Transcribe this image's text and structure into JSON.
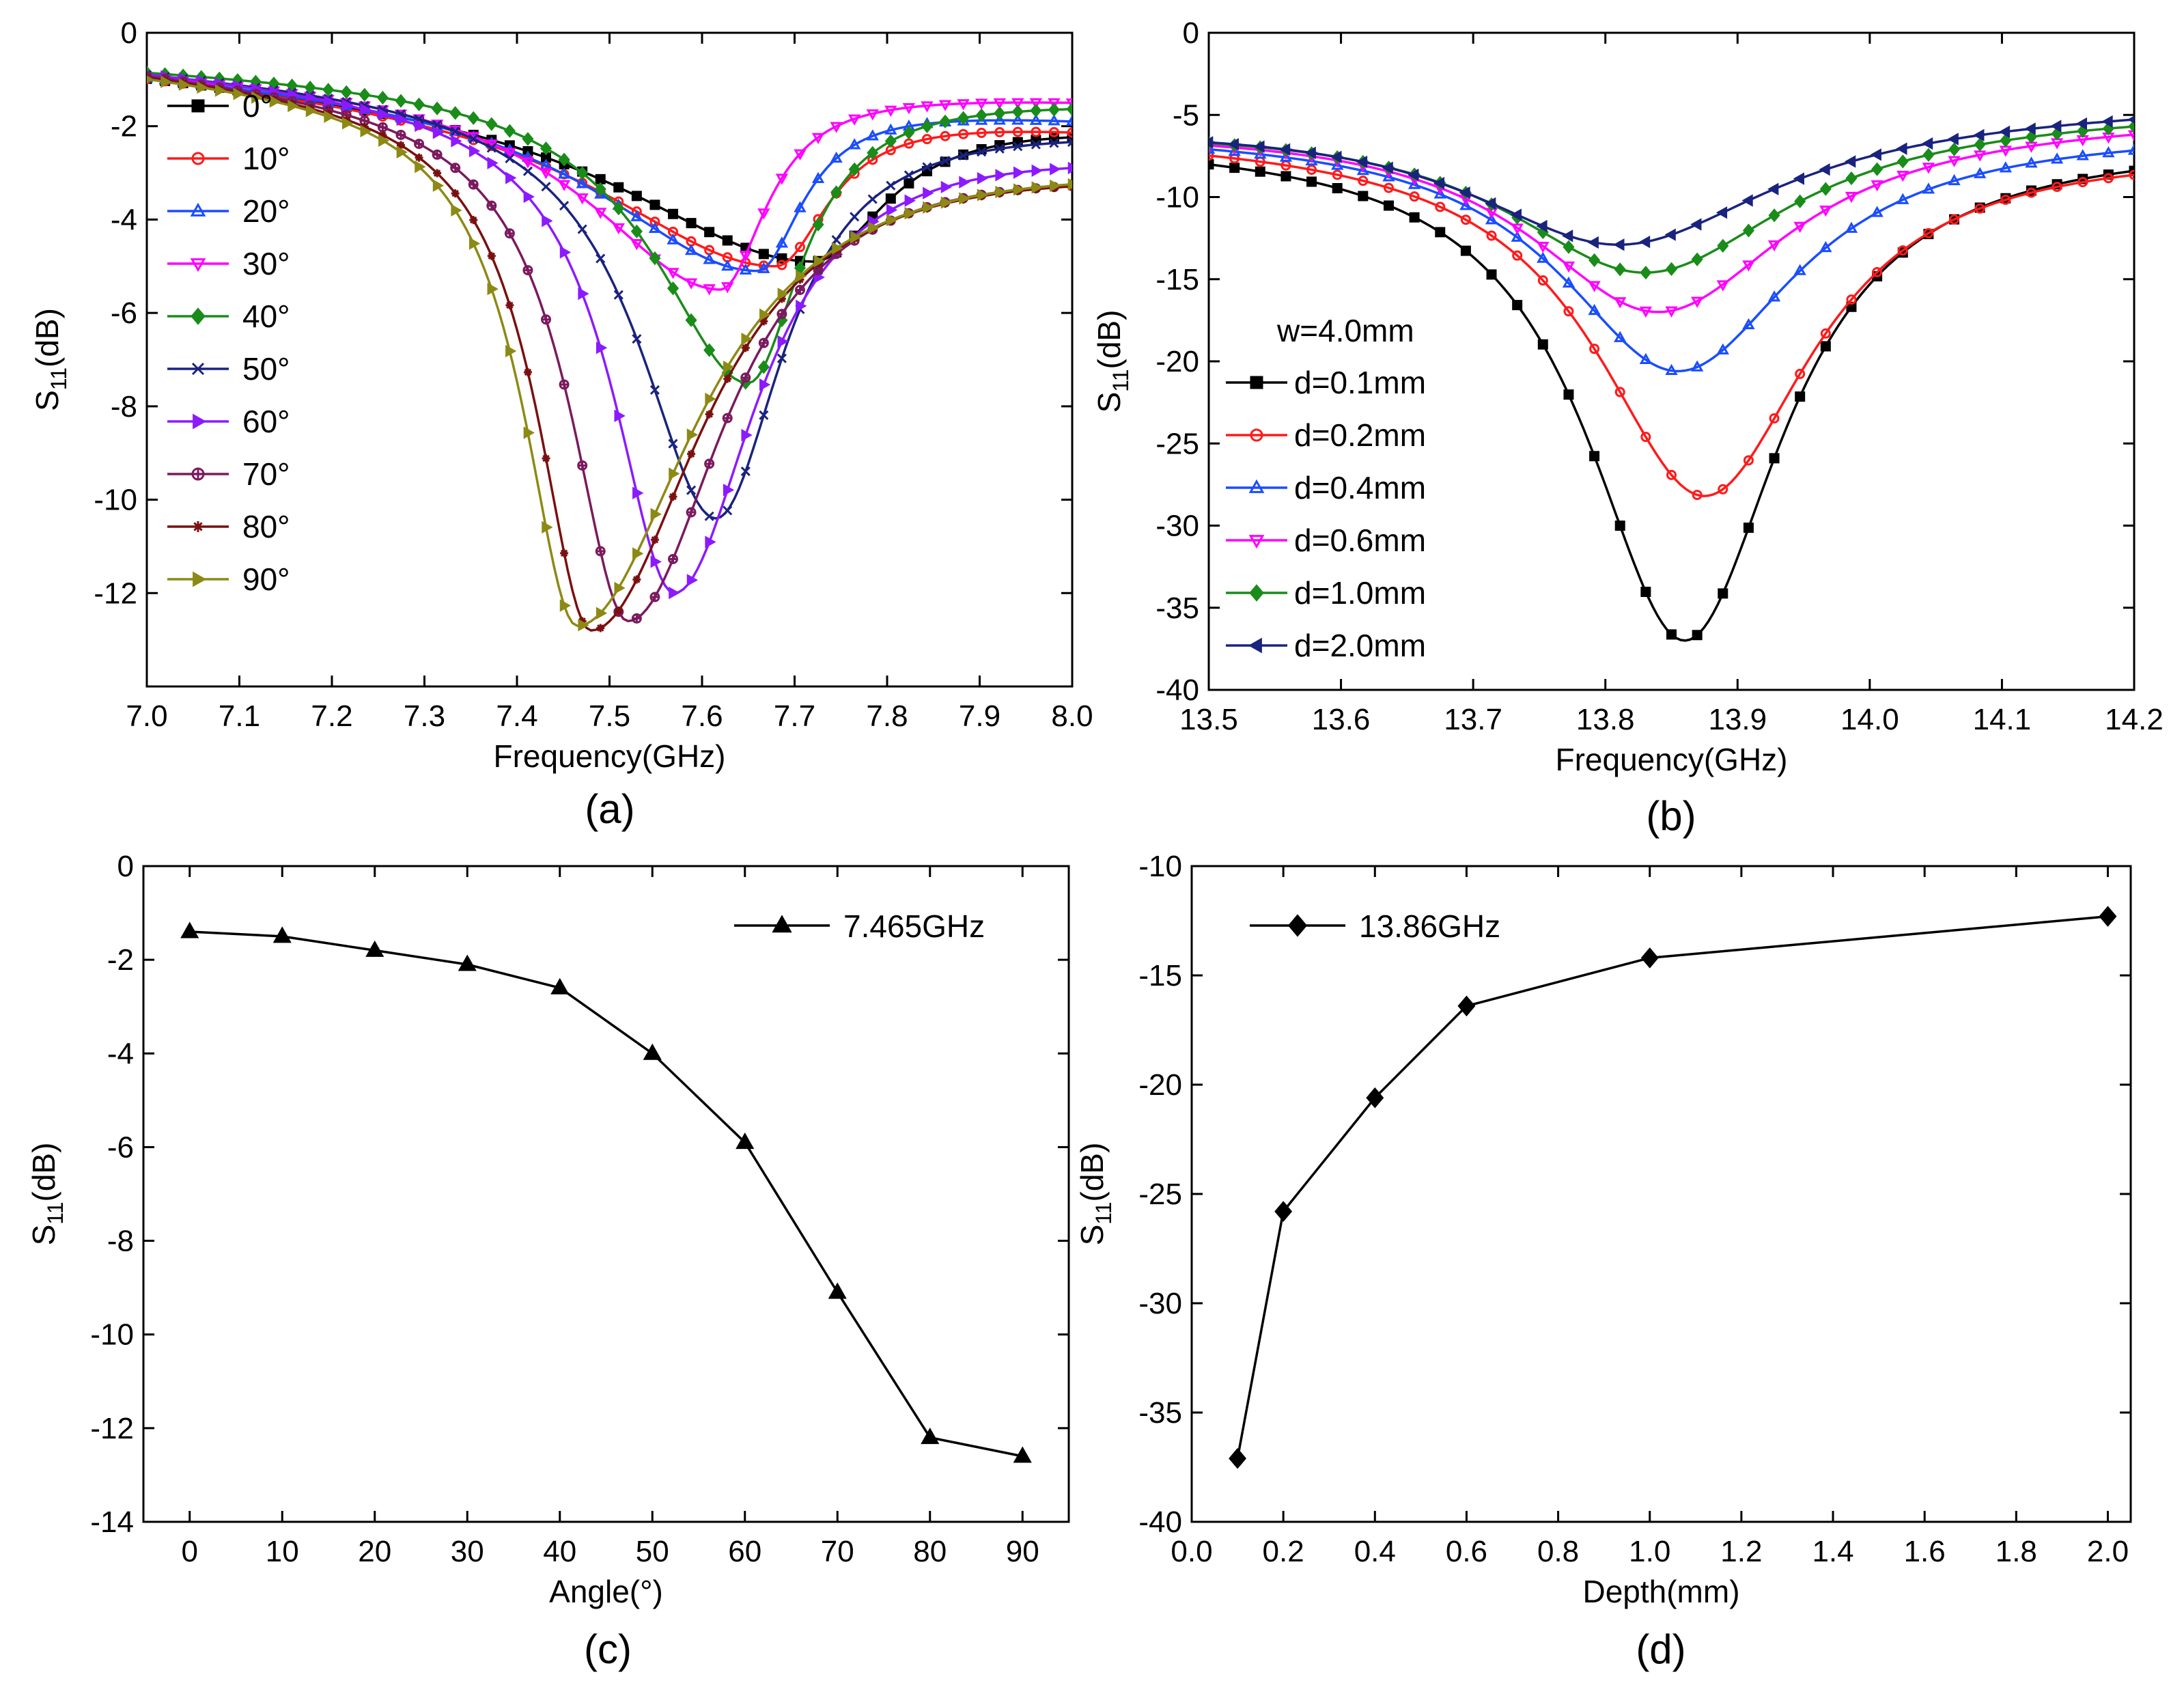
{
  "colors": {
    "black": "#000000",
    "red": "#ff1a1a",
    "blue": "#1a4dff",
    "magenta": "#ff00ff",
    "green": "#1a8c1a",
    "navy": "#1a237e",
    "violet": "#8c1aff",
    "purple": "#7b1a5e",
    "darkred": "#7a1010",
    "olive": "#8c8a14"
  },
  "chart_data": [
    {
      "panel": "a",
      "type": "line",
      "caption": "(a)",
      "xlabel": "Frequency(GHz)",
      "ylabel": "S11(dB)",
      "xlim": [
        7.0,
        8.0
      ],
      "ylim": [
        -14,
        0
      ],
      "xticks": [
        "7.0",
        "7.1",
        "7.2",
        "7.3",
        "7.4",
        "7.5",
        "7.6",
        "7.7",
        "7.8",
        "7.9",
        "8.0"
      ],
      "yticks": [
        "0",
        "-2",
        "-4",
        "-6",
        "-8",
        "-10",
        "-12"
      ],
      "legend_position": "left",
      "series": [
        {
          "name": "0°",
          "color": "black",
          "marker": "square",
          "f0": 7.72,
          "min": -4.9,
          "a": 0.5,
          "end": -1.9,
          "widthL": 0.24,
          "widthR": 0.1
        },
        {
          "name": "10°",
          "color": "red",
          "marker": "circle",
          "f0": 7.68,
          "min": -5.0,
          "a": 0.5,
          "end": -2.0,
          "widthL": 0.22,
          "widthR": 0.07
        },
        {
          "name": "20°",
          "color": "blue",
          "marker": "triangle-up",
          "f0": 7.66,
          "min": -5.1,
          "a": 0.5,
          "end": -1.8,
          "widthL": 0.2,
          "widthR": 0.06
        },
        {
          "name": "30°",
          "color": "magenta",
          "marker": "triangle-down",
          "f0": 7.62,
          "min": -5.5,
          "a": 0.5,
          "end": -1.4,
          "widthL": 0.17,
          "widthR": 0.06
        },
        {
          "name": "40°",
          "color": "green",
          "marker": "diamond",
          "f0": 7.65,
          "min": -7.5,
          "a": 0.6,
          "end": -1.4,
          "widthL": 0.12,
          "widthR": 0.07
        },
        {
          "name": "50°",
          "color": "navy",
          "marker": "x",
          "f0": 7.615,
          "min": -10.4,
          "a": 0.6,
          "end": -1.9,
          "widthL": 0.1,
          "widthR": 0.09
        },
        {
          "name": "60°",
          "color": "violet",
          "marker": "triangle-right",
          "f0": 7.57,
          "min": -12.0,
          "a": 0.6,
          "end": -2.3,
          "widthL": 0.08,
          "widthR": 0.11
        },
        {
          "name": "70°",
          "color": "purple",
          "marker": "circle-cross",
          "f0": 7.52,
          "min": -12.6,
          "a": 0.6,
          "end": -2.6,
          "widthL": 0.075,
          "widthR": 0.13
        },
        {
          "name": "80°",
          "color": "darkred",
          "marker": "star",
          "f0": 7.48,
          "min": -12.8,
          "a": 0.7,
          "end": -2.5,
          "widthL": 0.07,
          "widthR": 0.15
        },
        {
          "name": "90°",
          "color": "olive",
          "marker": "triangle-right",
          "f0": 7.465,
          "min": -12.7,
          "a": 0.7,
          "end": -2.4,
          "widthL": 0.07,
          "widthR": 0.16
        }
      ]
    },
    {
      "panel": "b",
      "type": "line",
      "caption": "(b)",
      "xlabel": "Frequency(GHz)",
      "ylabel": "S11(dB)",
      "xlim": [
        13.5,
        14.2
      ],
      "ylim": [
        -40,
        0
      ],
      "xticks": [
        "13.5",
        "13.6",
        "13.7",
        "13.8",
        "13.9",
        "14.0",
        "14.1",
        "14.2"
      ],
      "yticks": [
        "0",
        "-5",
        "-10",
        "-15",
        "-20",
        "-25",
        "-30",
        "-35",
        "-40"
      ],
      "legend_title": "w=4.0mm",
      "legend_position": "left",
      "series": [
        {
          "name": "d=0.1mm",
          "color": "black",
          "marker": "square",
          "f0": 13.86,
          "min": -37.0,
          "s0": -6.2,
          "end": -6.4,
          "widthL": 0.09,
          "widthR": 0.09
        },
        {
          "name": "d=0.2mm",
          "color": "red",
          "marker": "circle",
          "f0": 13.875,
          "min": -28.2,
          "s0": -6.0,
          "end": -6.8,
          "widthL": 0.1,
          "widthR": 0.1
        },
        {
          "name": "d=0.4mm",
          "color": "blue",
          "marker": "triangle-up",
          "f0": 13.855,
          "min": -20.6,
          "s0": -5.8,
          "end": -5.8,
          "widthL": 0.11,
          "widthR": 0.11
        },
        {
          "name": "d=0.6mm",
          "color": "magenta",
          "marker": "triangle-down",
          "f0": 13.84,
          "min": -17.0,
          "s0": -5.6,
          "end": -5.0,
          "widthL": 0.12,
          "widthR": 0.12
        },
        {
          "name": "d=1.0mm",
          "color": "green",
          "marker": "diamond",
          "f0": 13.83,
          "min": -14.6,
          "s0": -5.5,
          "end": -4.6,
          "widthL": 0.13,
          "widthR": 0.13
        },
        {
          "name": "d=2.0mm",
          "color": "navy",
          "marker": "triangle-left",
          "f0": 13.81,
          "min": -12.9,
          "s0": -5.4,
          "end": -4.3,
          "widthL": 0.14,
          "widthR": 0.14
        }
      ]
    },
    {
      "panel": "c",
      "type": "line",
      "caption": "(c)",
      "xlabel": "Angle(°)",
      "ylabel": "S11(dB)",
      "xlim": [
        -5,
        95
      ],
      "ylim": [
        -14,
        0
      ],
      "xticks": [
        "0",
        "10",
        "20",
        "30",
        "40",
        "50",
        "60",
        "70",
        "80",
        "90"
      ],
      "yticks": [
        "0",
        "-2",
        "-4",
        "-6",
        "-8",
        "-10",
        "-12",
        "-14"
      ],
      "legend_position": "top-right",
      "series": [
        {
          "name": "7.465GHz",
          "color": "black",
          "marker": "triangle-up",
          "x": [
            0,
            10,
            20,
            30,
            40,
            50,
            60,
            70,
            80,
            90
          ],
          "y": [
            -1.4,
            -1.5,
            -1.8,
            -2.1,
            -2.6,
            -4.0,
            -5.9,
            -9.1,
            -12.2,
            -12.6
          ]
        }
      ]
    },
    {
      "panel": "d",
      "type": "line",
      "caption": "(d)",
      "xlabel": "Depth(mm)",
      "ylabel": "S11(dB)",
      "xlim": [
        0.0,
        2.05
      ],
      "ylim": [
        -40,
        -10
      ],
      "xticks": [
        "0.0",
        "0.2",
        "0.4",
        "0.6",
        "0.8",
        "1.0",
        "1.2",
        "1.4",
        "1.6",
        "1.8",
        "2.0"
      ],
      "yticks": [
        "-10",
        "-15",
        "-20",
        "-25",
        "-30",
        "-35",
        "-40"
      ],
      "legend_position": "top-left",
      "series": [
        {
          "name": "13.86GHz",
          "color": "black",
          "marker": "diamond",
          "x": [
            0.1,
            0.2,
            0.4,
            0.6,
            1.0,
            2.0
          ],
          "y": [
            -37.1,
            -25.8,
            -20.6,
            -16.4,
            -14.2,
            -12.3
          ]
        }
      ]
    }
  ]
}
